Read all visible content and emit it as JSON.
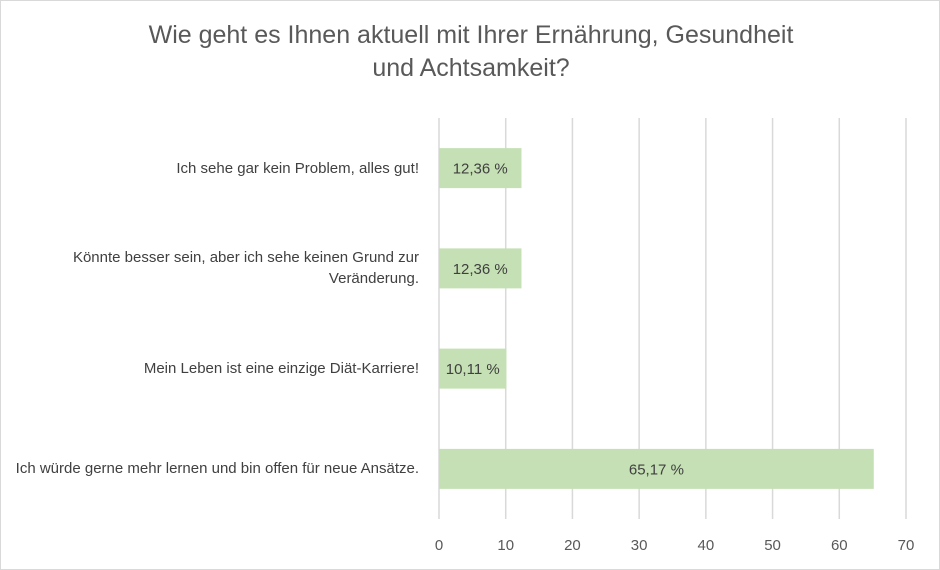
{
  "chart_data": {
    "type": "bar",
    "orientation": "horizontal",
    "title_line1": "Wie geht es Ihnen aktuell mit Ihrer Ernährung, Gesundheit",
    "title_line2": "und Achtsamkeit?",
    "categories": [
      "Ich sehe gar kein Problem, alles gut!",
      "Könnte besser sein, aber ich sehe keinen Grund zur Veränderung.",
      "Mein Leben ist eine einzige Diät-Karriere!",
      "Ich würde gerne mehr lernen und bin offen für neue Ansätze."
    ],
    "values": [
      12.36,
      12.36,
      10.11,
      65.17
    ],
    "data_labels": [
      "12,36 %",
      "12,36 %",
      "10,11 %",
      "65,17 %"
    ],
    "xlim": [
      0,
      70
    ],
    "x_ticks": [
      "0",
      "10",
      "20",
      "30",
      "40",
      "50",
      "60",
      "70"
    ],
    "grid": true,
    "bar_color": "#c5e0b4",
    "grid_color": "#d9d9d9"
  }
}
